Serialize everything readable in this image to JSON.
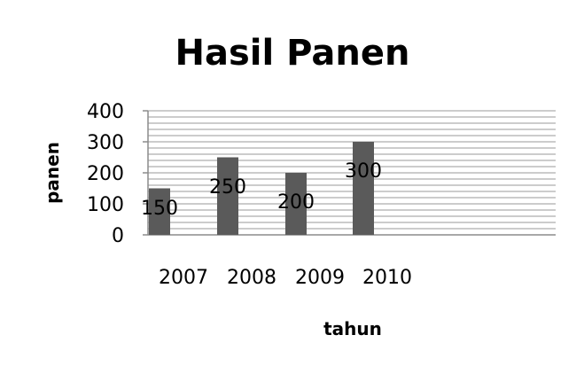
{
  "chart_data": {
    "type": "bar",
    "title": "Hasil Panen",
    "xlabel": "tahun",
    "ylabel": "panen",
    "categories": [
      "2007",
      "2008",
      "2009",
      "2010"
    ],
    "values": [
      150,
      250,
      200,
      300
    ],
    "data_labels": [
      "150",
      "250",
      "200",
      "300"
    ],
    "y_ticks": [
      0,
      100,
      200,
      300,
      400
    ],
    "ylim": [
      0,
      400
    ],
    "grid": true,
    "legend": "none",
    "bar_color": "#5a5a5a"
  }
}
